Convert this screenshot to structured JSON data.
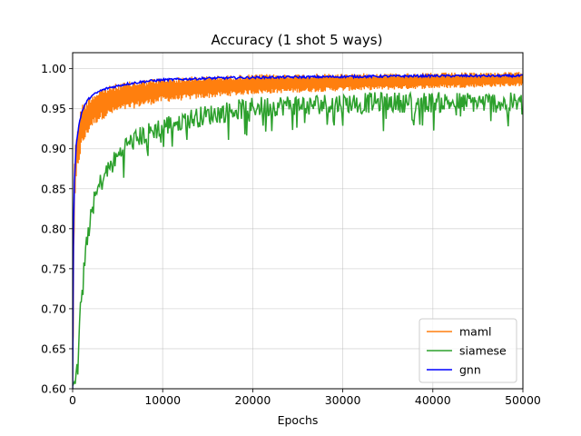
{
  "chart_data": {
    "type": "line",
    "title": "Accuracy (1 shot 5 ways)",
    "xlabel": "Epochs",
    "ylabel": "",
    "xlim": [
      0,
      50000
    ],
    "ylim": [
      0.6,
      1.02
    ],
    "grid": true,
    "legend_position": "lower-right",
    "x_ticks": [
      0,
      10000,
      20000,
      30000,
      40000,
      50000
    ],
    "x_tick_labels": [
      "0",
      "10000",
      "20000",
      "30000",
      "40000",
      "50000"
    ],
    "y_ticks": [
      0.6,
      0.65,
      0.7,
      0.75,
      0.8,
      0.85,
      0.9,
      0.95,
      1.0
    ],
    "y_tick_labels": [
      "0.60",
      "0.65",
      "0.70",
      "0.75",
      "0.80",
      "0.85",
      "0.90",
      "0.95",
      "1.00"
    ],
    "series": [
      {
        "name": "maml",
        "color": "#ff7f0e",
        "band_upper": [
          [
            0,
            0.66
          ],
          [
            200,
            0.89
          ],
          [
            500,
            0.93
          ],
          [
            1000,
            0.955
          ],
          [
            2000,
            0.968
          ],
          [
            3000,
            0.975
          ],
          [
            5000,
            0.982
          ],
          [
            7500,
            0.986
          ],
          [
            10000,
            0.989
          ],
          [
            15000,
            0.991
          ],
          [
            20000,
            0.993
          ],
          [
            30000,
            0.994
          ],
          [
            40000,
            0.995
          ],
          [
            50000,
            0.996
          ]
        ],
        "band_lower": [
          [
            0,
            0.6
          ],
          [
            200,
            0.82
          ],
          [
            500,
            0.87
          ],
          [
            1000,
            0.9
          ],
          [
            2000,
            0.925
          ],
          [
            3000,
            0.935
          ],
          [
            5000,
            0.945
          ],
          [
            7500,
            0.952
          ],
          [
            10000,
            0.958
          ],
          [
            15000,
            0.963
          ],
          [
            20000,
            0.968
          ],
          [
            30000,
            0.972
          ],
          [
            40000,
            0.975
          ],
          [
            50000,
            0.978
          ]
        ]
      },
      {
        "name": "siamese",
        "color": "#2ca02c",
        "values": [
          [
            0,
            0.6
          ],
          [
            300,
            0.61
          ],
          [
            600,
            0.65
          ],
          [
            1000,
            0.72
          ],
          [
            1500,
            0.78
          ],
          [
            2000,
            0.82
          ],
          [
            3000,
            0.855
          ],
          [
            4000,
            0.875
          ],
          [
            5000,
            0.89
          ],
          [
            6000,
            0.905
          ],
          [
            8000,
            0.918
          ],
          [
            10000,
            0.928
          ],
          [
            12000,
            0.935
          ],
          [
            15000,
            0.942
          ],
          [
            18000,
            0.948
          ],
          [
            20000,
            0.952
          ],
          [
            25000,
            0.955
          ],
          [
            30000,
            0.957
          ],
          [
            35000,
            0.958
          ],
          [
            40000,
            0.958
          ],
          [
            45000,
            0.958
          ],
          [
            50000,
            0.957
          ]
        ],
        "noise": 0.013
      },
      {
        "name": "gnn",
        "color": "#0000ff",
        "values": [
          [
            0,
            0.6
          ],
          [
            100,
            0.8
          ],
          [
            200,
            0.86
          ],
          [
            400,
            0.905
          ],
          [
            700,
            0.93
          ],
          [
            1000,
            0.945
          ],
          [
            1500,
            0.958
          ],
          [
            2000,
            0.965
          ],
          [
            3000,
            0.972
          ],
          [
            4000,
            0.976
          ],
          [
            6000,
            0.981
          ],
          [
            8000,
            0.984
          ],
          [
            10000,
            0.986
          ],
          [
            15000,
            0.988
          ],
          [
            20000,
            0.989
          ],
          [
            30000,
            0.99
          ],
          [
            40000,
            0.991
          ],
          [
            50000,
            0.991
          ]
        ],
        "noise": 0.0015
      }
    ]
  }
}
